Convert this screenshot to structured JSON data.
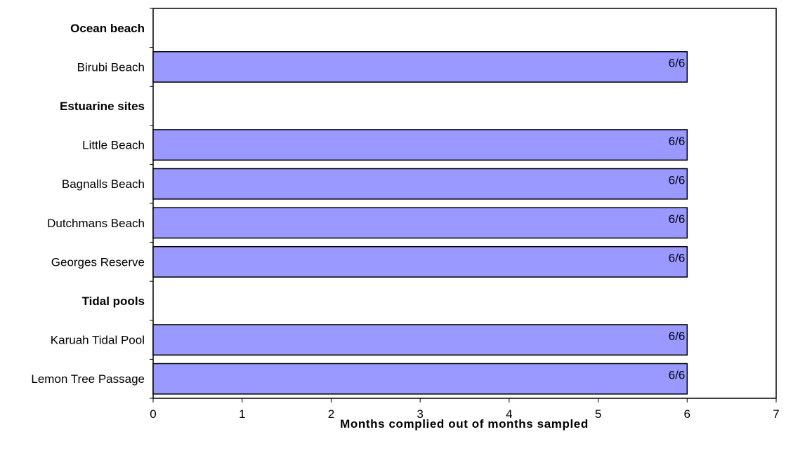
{
  "chart_data": {
    "type": "bar",
    "orientation": "horizontal",
    "xlabel": "Months complied out of months sampled",
    "xlim": [
      0,
      7
    ],
    "xticks": [
      "0",
      "1",
      "2",
      "3",
      "4",
      "5",
      "6",
      "7"
    ],
    "grid": false,
    "bar_color": "#9999ff",
    "categories": [
      {
        "label": "Ocean beach",
        "heading": true,
        "value": null,
        "data_label": ""
      },
      {
        "label": "Birubi Beach",
        "heading": false,
        "value": 6,
        "data_label": "6/6"
      },
      {
        "label": "Estuarine sites",
        "heading": true,
        "value": null,
        "data_label": ""
      },
      {
        "label": "Little Beach",
        "heading": false,
        "value": 6,
        "data_label": "6/6"
      },
      {
        "label": "Bagnalls Beach",
        "heading": false,
        "value": 6,
        "data_label": "6/6"
      },
      {
        "label": "Dutchmans Beach",
        "heading": false,
        "value": 6,
        "data_label": "6/6"
      },
      {
        "label": "Georges Reserve",
        "heading": false,
        "value": 6,
        "data_label": "6/6"
      },
      {
        "label": "Tidal pools",
        "heading": true,
        "value": null,
        "data_label": ""
      },
      {
        "label": "Karuah Tidal Pool",
        "heading": false,
        "value": 6,
        "data_label": "6/6"
      },
      {
        "label": "Lemon Tree Passage",
        "heading": false,
        "value": 6,
        "data_label": "6/6"
      }
    ]
  }
}
